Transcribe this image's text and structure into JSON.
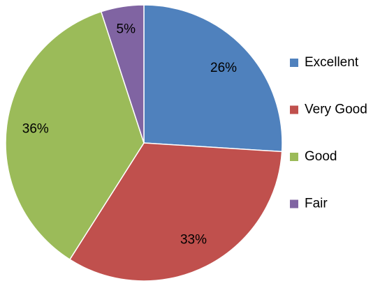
{
  "chart_data": {
    "type": "pie",
    "categories": [
      "Excellent",
      "Very Good",
      "Good",
      "Fair"
    ],
    "values": [
      26,
      33,
      36,
      5
    ],
    "value_labels": [
      "26%",
      "33%",
      "36%",
      "5%"
    ],
    "colors": [
      "#4f81bd",
      "#c0504d",
      "#9bbb59",
      "#8064a2"
    ],
    "legend": "right"
  }
}
